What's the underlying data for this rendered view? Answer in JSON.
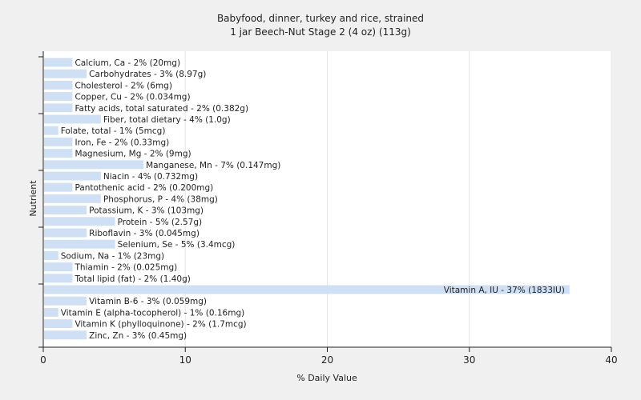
{
  "chart_data": {
    "type": "bar",
    "orientation": "horizontal",
    "title": "Babyfood, dinner, turkey and rice, strained",
    "subtitle": "1 jar Beech-Nut Stage 2 (4 oz) (113g)",
    "xlabel": "% Daily Value",
    "ylabel": "Nutrient",
    "xlim": [
      0,
      40
    ],
    "xticks": [
      0,
      10,
      20,
      30,
      40
    ],
    "grid": true,
    "colors": {
      "background": "#f0f0f0",
      "plot_background": "#ffffff",
      "bar": "#d0e0f4",
      "gridline": "#e6e6e6",
      "axis": "#222222"
    },
    "categories": [
      "Calcium, Ca",
      "Carbohydrates",
      "Cholesterol",
      "Copper, Cu",
      "Fatty acids, total saturated",
      "Fiber, total dietary",
      "Folate, total",
      "Iron, Fe",
      "Magnesium, Mg",
      "Manganese, Mn",
      "Niacin",
      "Pantothenic acid",
      "Phosphorus, P",
      "Potassium, K",
      "Protein",
      "Riboflavin",
      "Selenium, Se",
      "Sodium, Na",
      "Thiamin",
      "Total lipid (fat)",
      "Vitamin A, IU",
      "Vitamin B-6",
      "Vitamin E (alpha-tocopherol)",
      "Vitamin K (phylloquinone)",
      "Zinc, Zn"
    ],
    "values": [
      2,
      3,
      2,
      2,
      2,
      4,
      1,
      2,
      2,
      7,
      4,
      2,
      4,
      3,
      5,
      3,
      5,
      1,
      2,
      2,
      37,
      3,
      1,
      2,
      3
    ],
    "labels": [
      "Calcium, Ca - 2% (20mg)",
      "Carbohydrates - 3% (8.97g)",
      "Cholesterol - 2% (6mg)",
      "Copper, Cu - 2% (0.034mg)",
      "Fatty acids, total saturated - 2% (0.382g)",
      "Fiber, total dietary - 4% (1.0g)",
      "Folate, total - 1% (5mcg)",
      "Iron, Fe - 2% (0.33mg)",
      "Magnesium, Mg - 2% (9mg)",
      "Manganese, Mn - 7% (0.147mg)",
      "Niacin - 4% (0.732mg)",
      "Pantothenic acid - 2% (0.200mg)",
      "Phosphorus, P - 4% (38mg)",
      "Potassium, K - 3% (103mg)",
      "Protein - 5% (2.57g)",
      "Riboflavin - 3% (0.045mg)",
      "Selenium, Se - 5% (3.4mcg)",
      "Sodium, Na - 1% (23mg)",
      "Thiamin - 2% (0.025mg)",
      "Total lipid (fat) - 2% (1.40g)",
      "Vitamin A, IU - 37% (1833IU)",
      "Vitamin B-6 - 3% (0.059mg)",
      "Vitamin E (alpha-tocopherol) - 1% (0.16mg)",
      "Vitamin K (phylloquinone) - 2% (1.7mcg)",
      "Zinc, Zn - 3% (0.45mg)"
    ]
  }
}
